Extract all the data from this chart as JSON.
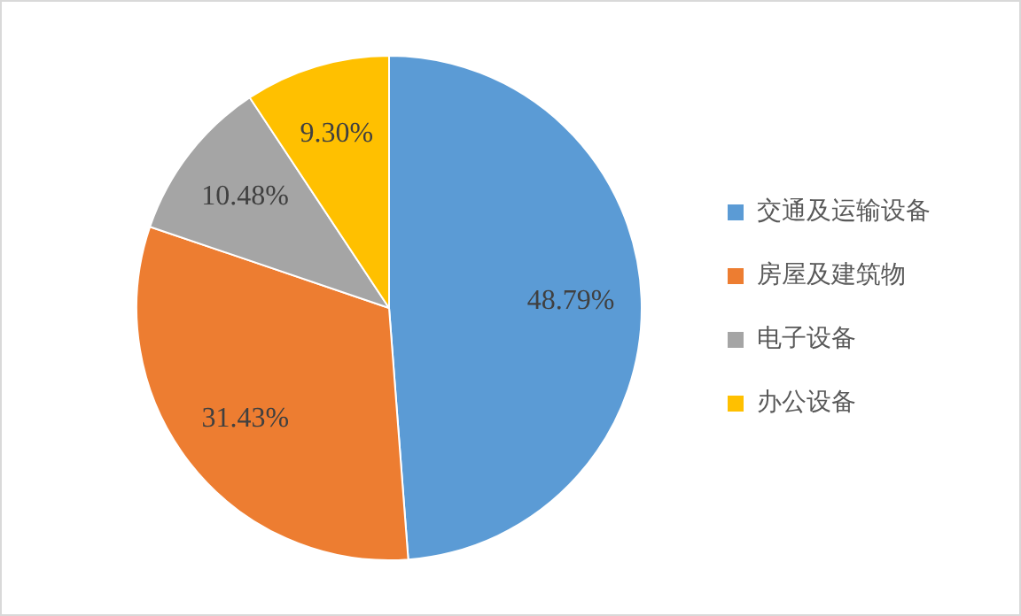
{
  "chart_data": {
    "type": "pie",
    "categories": [
      "交通及运输设备",
      "房屋及建筑物",
      "电子设备",
      "办公设备"
    ],
    "values": [
      48.79,
      31.43,
      10.48,
      9.3
    ],
    "colors": [
      "#5b9bd5",
      "#ed7d31",
      "#a5a5a5",
      "#ffc000"
    ],
    "value_labels": [
      "48.79%",
      "31.43%",
      "10.48%",
      "9.30%"
    ],
    "legend": "right"
  }
}
